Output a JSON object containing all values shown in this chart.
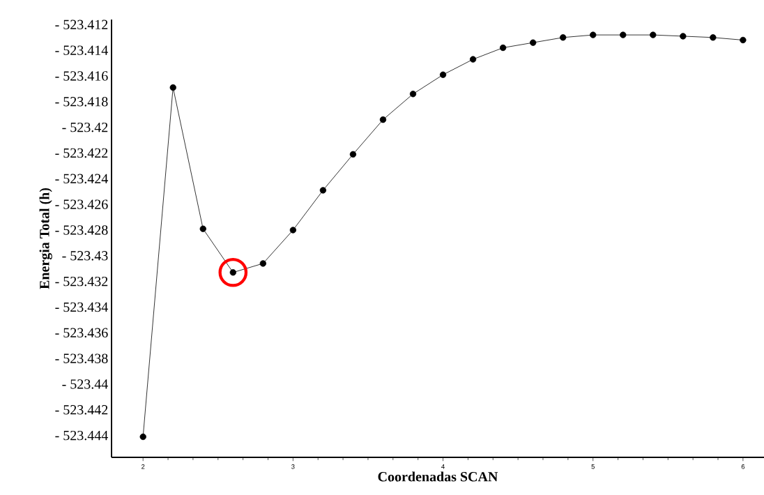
{
  "chart_data": {
    "type": "line",
    "xlabel": "Coordenadas SCAN",
    "ylabel": "Energia Total (h)",
    "x": [
      2.0,
      2.2,
      2.4,
      2.6,
      2.8,
      3.0,
      3.2,
      3.4,
      3.6,
      3.8,
      4.0,
      4.2,
      4.4,
      4.6,
      4.8,
      5.0,
      5.2,
      5.4,
      5.6,
      5.8,
      6.0
    ],
    "series": [
      {
        "color": "#000000",
        "values": [
          -523.4441,
          -523.4169,
          -523.4279,
          -523.4313,
          -523.4306,
          -523.428,
          -523.4249,
          -523.4221,
          -523.4194,
          -523.4174,
          -523.4159,
          -523.4147,
          -523.4138,
          -523.4134,
          -523.413,
          -523.4128,
          -523.4128,
          -523.4128,
          -523.4129,
          -523.413,
          -523.4132
        ]
      }
    ],
    "marker": "circle",
    "line_style": "solid",
    "xlim": [
      1.79,
      6.14
    ],
    "ylim": [
      -523.4457,
      -523.4116
    ],
    "xticks": [
      2,
      3,
      4,
      5,
      6
    ],
    "yticks": [
      {
        "value": -523.412,
        "label": "- 523.412"
      },
      {
        "value": -523.414,
        "label": "- 523.414"
      },
      {
        "value": -523.416,
        "label": "- 523.416"
      },
      {
        "value": -523.418,
        "label": "- 523.418"
      },
      {
        "value": -523.42,
        "label": "- 523.42"
      },
      {
        "value": -523.422,
        "label": "- 523.422"
      },
      {
        "value": -523.424,
        "label": "- 523.424"
      },
      {
        "value": -523.426,
        "label": "- 523.426"
      },
      {
        "value": -523.428,
        "label": "- 523.428"
      },
      {
        "value": -523.43,
        "label": "- 523.43"
      },
      {
        "value": -523.432,
        "label": "- 523.432"
      },
      {
        "value": -523.434,
        "label": "- 523.434"
      },
      {
        "value": -523.436,
        "label": "- 523.436"
      },
      {
        "value": -523.438,
        "label": "- 523.438"
      },
      {
        "value": -523.44,
        "label": "- 523.44"
      },
      {
        "value": -523.442,
        "label": "- 523.442"
      },
      {
        "value": -523.444,
        "label": "- 523.444"
      }
    ]
  }
}
